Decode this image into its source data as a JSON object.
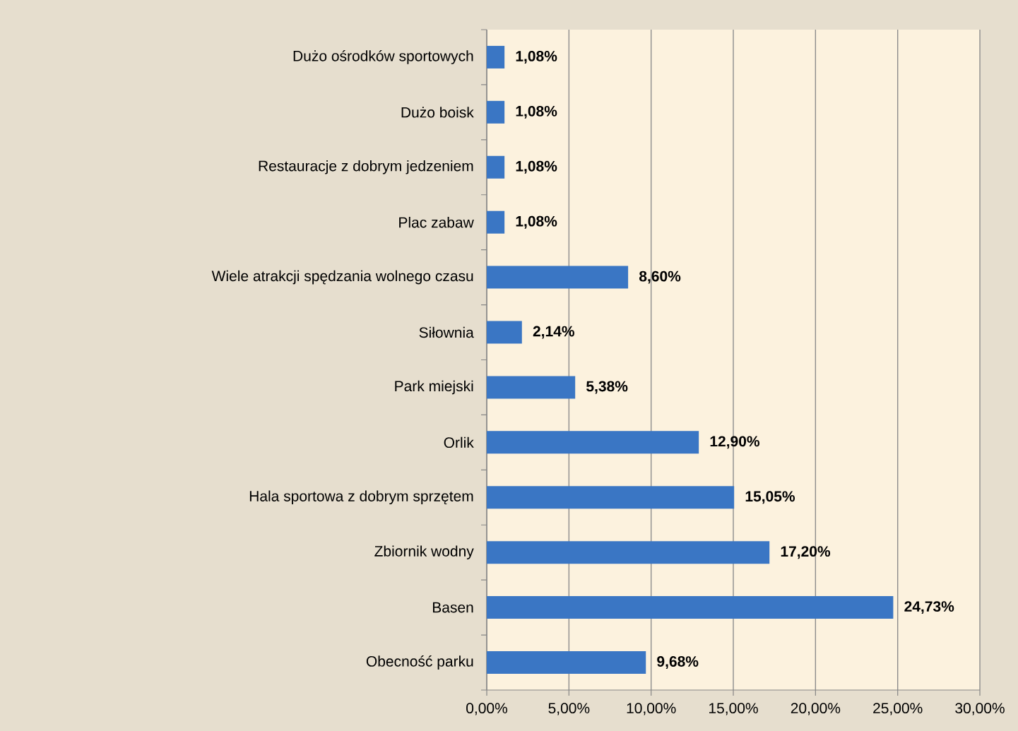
{
  "chart_data": {
    "type": "bar",
    "orientation": "horizontal",
    "categories": [
      "Dużo ośrodków sportowych",
      "Dużo boisk",
      "Restauracje z dobrym jedzeniem",
      "Plac zabaw",
      "Wiele atrakcji spędzania wolnego czasu",
      "Siłownia",
      "Park miejski",
      "Orlik",
      "Hala sportowa z dobrym sprzętem",
      "Zbiornik wodny",
      "Basen",
      "Obecność parku"
    ],
    "values": [
      1.08,
      1.08,
      1.08,
      1.08,
      8.6,
      2.14,
      5.38,
      12.9,
      15.05,
      17.2,
      24.73,
      9.68
    ],
    "value_labels": [
      "1,08%",
      "1,08%",
      "1,08%",
      "1,08%",
      "8,60%",
      "2,14%",
      "5,38%",
      "12,90%",
      "15,05%",
      "17,20%",
      "24,73%",
      "9,68%"
    ],
    "color": "#3a76c4",
    "xlim": [
      0,
      30
    ],
    "xticks": [
      {
        "value": 0,
        "label": "0,00%"
      },
      {
        "value": 5,
        "label": "5,00%"
      },
      {
        "value": 10,
        "label": "10,00%"
      },
      {
        "value": 15,
        "label": "15,00%"
      },
      {
        "value": 20,
        "label": "20,00%"
      },
      {
        "value": 25,
        "label": "25,00%"
      },
      {
        "value": 30,
        "label": "30,00%"
      }
    ],
    "grid": "x"
  }
}
